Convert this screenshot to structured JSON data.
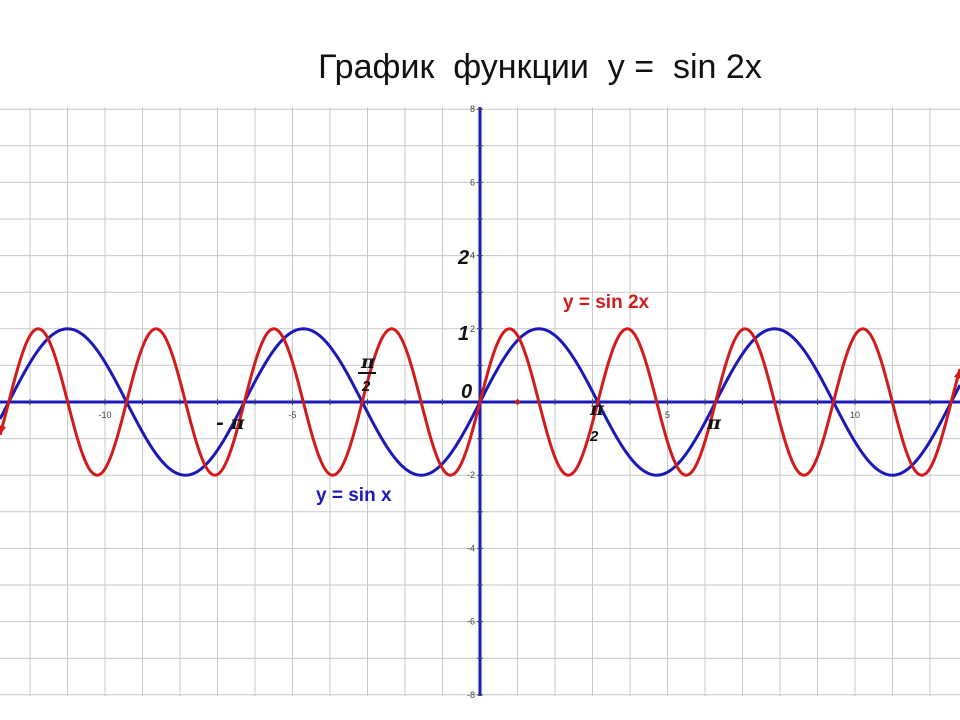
{
  "title": "График  функции  у =  sin 2x",
  "colors": {
    "sin2x": "#d21c1c",
    "sinx": "#1a1ab8",
    "grid": "#c8c8c8",
    "axis": "#1a1ab8"
  },
  "chart_data": {
    "type": "line",
    "title": "График  функции  у =  sin 2x",
    "xlim": [
      -12.8,
      12.8
    ],
    "ylim": [
      -8,
      8
    ],
    "grid": true,
    "x_ticks": [
      -10,
      -5,
      5,
      10
    ],
    "y_ticks": [
      -8,
      -6,
      -4,
      -2,
      2,
      4,
      6,
      8
    ],
    "series": [
      {
        "name": "y = sin 2x",
        "function": "2*sin(2x)",
        "x": [
          -12.8,
          12.8
        ]
      },
      {
        "name": "y = sin x",
        "function": "2*sin(x)",
        "x": [
          -12.8,
          12.8
        ]
      }
    ],
    "annotations": {
      "y_two": "2",
      "y_one": "1",
      "origin": "0",
      "pi_half_neg_num": "π",
      "pi_half_neg_den": "2",
      "neg_pi": "- π",
      "pi_half_num": "π",
      "pi_half_den": "2",
      "pi": "π"
    }
  }
}
